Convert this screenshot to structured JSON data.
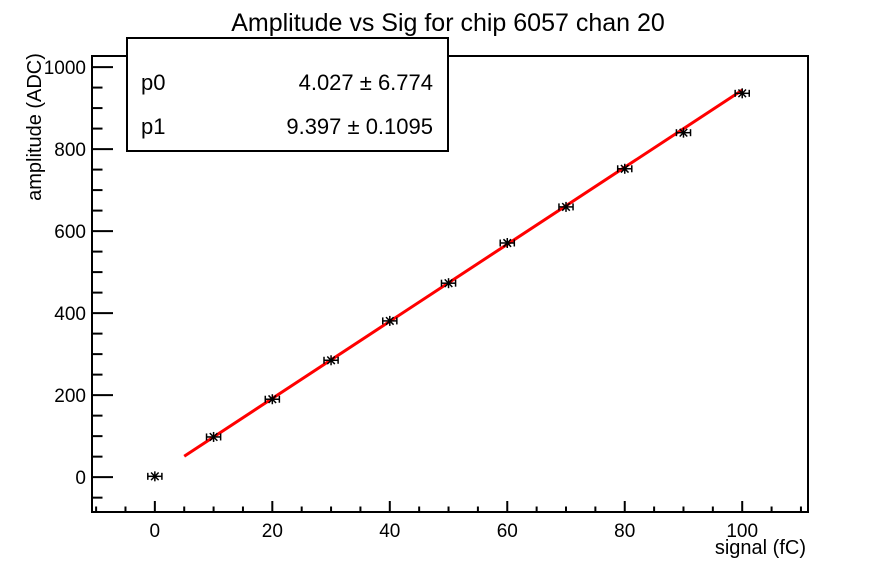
{
  "title": "Amplitude vs Sig for chip 6057 chan 20",
  "stats_box": {
    "rows": [
      {
        "param": "p0",
        "value": "4.027 ± 6.774"
      },
      {
        "param": "p1",
        "value": "9.397 ± 0.1095"
      }
    ]
  },
  "axes": {
    "x": {
      "label": "signal (fC)",
      "range": [
        -10.7,
        111.2
      ],
      "major_ticks": [
        0,
        20,
        40,
        60,
        80,
        100
      ],
      "major_tick_labels": [
        "0",
        "20",
        "40",
        "60",
        "80",
        "100"
      ],
      "minor_step": 5
    },
    "y": {
      "label": "amplitude (ADC)",
      "range": [
        -85,
        1027
      ],
      "major_ticks": [
        0,
        200,
        400,
        600,
        800,
        1000
      ],
      "major_tick_labels": [
        "0",
        "200",
        "400",
        "600",
        "800",
        "1000"
      ],
      "minor_step": 50
    }
  },
  "chart_data": {
    "type": "scatter",
    "title": "Amplitude vs Sig for chip 6057 chan 20",
    "xlabel": "signal (fC)",
    "ylabel": "amplitude (ADC)",
    "x": [
      0,
      10,
      20,
      30,
      40,
      50,
      60,
      70,
      80,
      90,
      100
    ],
    "y": [
      2,
      98,
      190,
      285,
      381,
      473,
      571,
      659,
      752,
      840,
      936
    ],
    "x_err": 1.2,
    "marker": "asterisk",
    "marker_color": "#000000",
    "fit": {
      "type": "linear",
      "p0": 4.027,
      "p1": 9.397,
      "x_range": [
        5,
        100
      ],
      "color": "#ff0000"
    },
    "xlim": [
      -10.7,
      111.2
    ],
    "ylim": [
      -85,
      1027
    ],
    "grid": false,
    "legend_position": "none"
  },
  "colors": {
    "background": "#ffffff",
    "frame": "#000000",
    "fit_line": "#ff0000",
    "marker": "#000000",
    "stats_box_bg": "#ffffff",
    "stats_box_border": "#000000"
  }
}
